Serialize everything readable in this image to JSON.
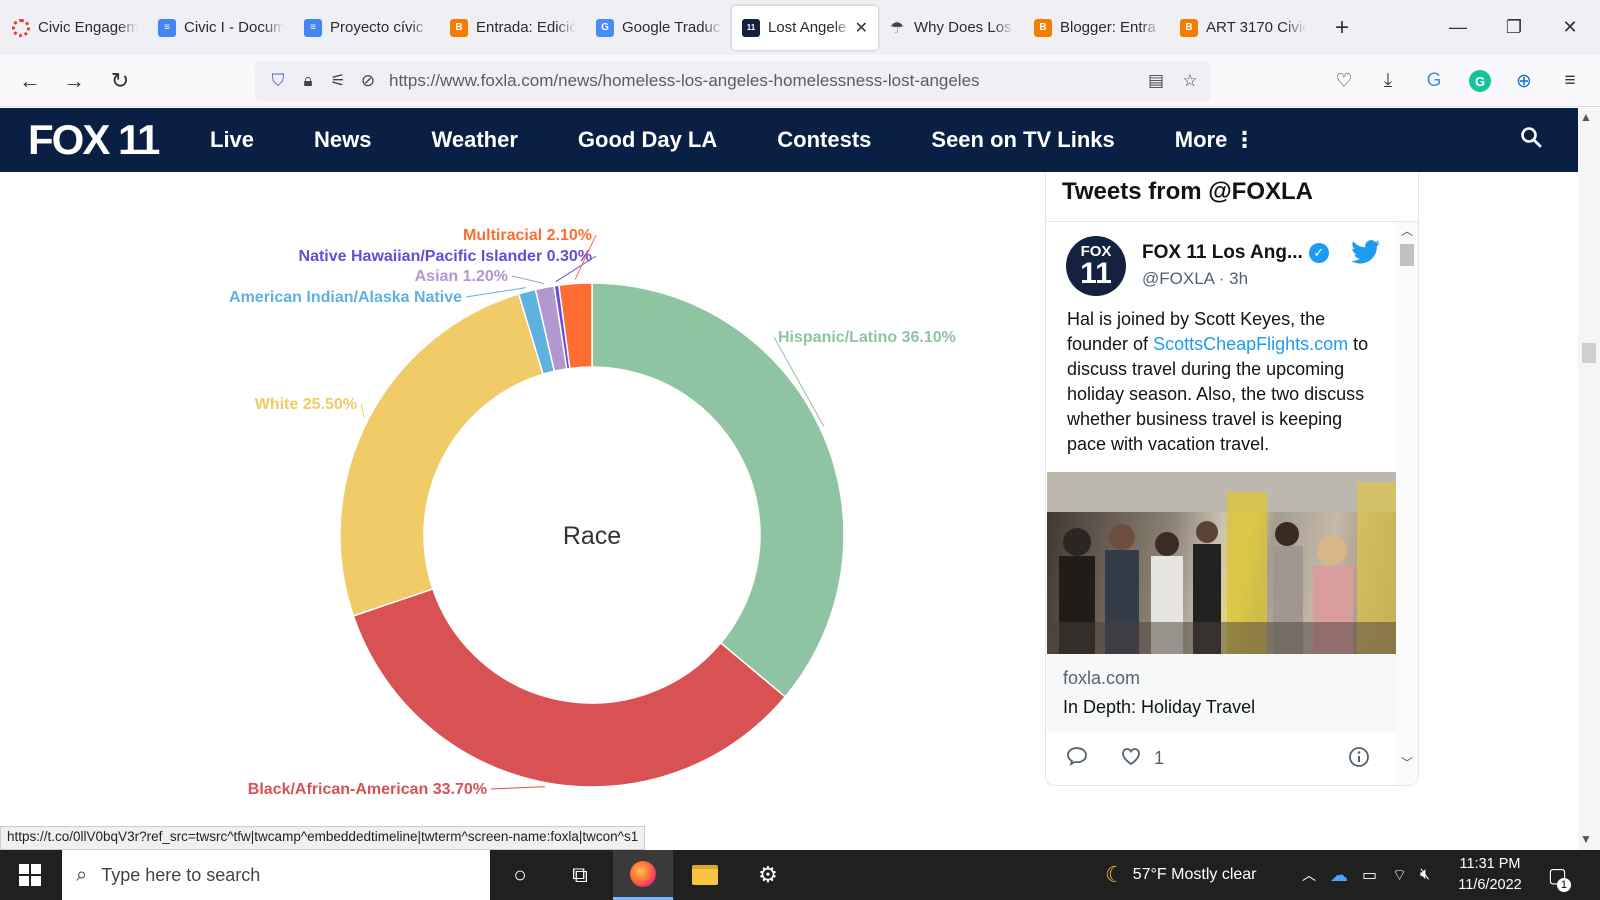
{
  "browser": {
    "tabs": [
      {
        "title": "Civic Engagem",
        "icon": "civic-icon",
        "active": false
      },
      {
        "title": "Civic I - Docum",
        "icon": "docs-icon",
        "active": false
      },
      {
        "title": "Proyecto cívic",
        "icon": "docs-icon",
        "active": false
      },
      {
        "title": "Entrada: Edició",
        "icon": "blogger-icon",
        "active": false
      },
      {
        "title": "Google Traduc",
        "icon": "google-translate-icon",
        "active": false
      },
      {
        "title": "Lost Angele",
        "icon": "fox-icon",
        "active": true
      },
      {
        "title": "Why Does Los",
        "icon": "why-icon",
        "active": false
      },
      {
        "title": "Blogger: Entra",
        "icon": "blogger-icon",
        "active": false
      },
      {
        "title": "ART 3170 Civic",
        "icon": "blogger-icon",
        "active": false
      }
    ],
    "url": "https://www.foxla.com/news/homeless-los-angeles-homelessness-lost-angeles",
    "status_url": "https://t.co/0llV0bqV3r?ref_src=twsrc^tfw|twcamp^embeddedtimeline|twterm^screen-name:foxla|twcon^s1"
  },
  "site": {
    "logo": "FOX 11",
    "nav": [
      "Live",
      "News",
      "Weather",
      "Good Day LA",
      "Contests",
      "Seen on TV Links",
      "More ⋮"
    ]
  },
  "chart_data": {
    "type": "pie",
    "center_label": "Race",
    "slices": [
      {
        "label": "Hispanic/Latino 36.10%",
        "value": 36.1,
        "color": "#8fc4a3"
      },
      {
        "label": "Black/African-American 33.70%",
        "value": 33.7,
        "color": "#d95253"
      },
      {
        "label": "White 25.50%",
        "value": 25.5,
        "color": "#f0cb67"
      },
      {
        "label": "American Indian/Alaska Native",
        "value": 1.1,
        "color": "#5eb2e0"
      },
      {
        "label": "Asian 1.20%",
        "value": 1.2,
        "color": "#b198cf"
      },
      {
        "label": "Native Hawaiian/Pacific Islander 0.30%",
        "value": 0.3,
        "color": "#6a4ad6"
      },
      {
        "label": "Multiracial 2.10%",
        "value": 2.1,
        "color": "#ff6d33"
      }
    ]
  },
  "tweets": {
    "header": "Tweets from @FOXLA",
    "avatar_line1": "FOX",
    "avatar_line2": "11",
    "name": "FOX 11 Los Ang...",
    "handle": "@FOXLA · 3h",
    "text_before": "Hal is joined by Scott Keyes, the founder of ",
    "link": "ScottsCheapFlights.com",
    "text_after": " to discuss travel during the upcoming holiday season. Also, the two discuss whether business travel is keeping pace with vacation travel.",
    "card_domain": "foxla.com",
    "card_title": "In Depth: Holiday Travel",
    "likes": "1"
  },
  "taskbar": {
    "search_placeholder": "Type here to search",
    "weather": "57°F  Mostly clear",
    "time": "11:31 PM",
    "date": "11/6/2022",
    "notifications": "1"
  }
}
